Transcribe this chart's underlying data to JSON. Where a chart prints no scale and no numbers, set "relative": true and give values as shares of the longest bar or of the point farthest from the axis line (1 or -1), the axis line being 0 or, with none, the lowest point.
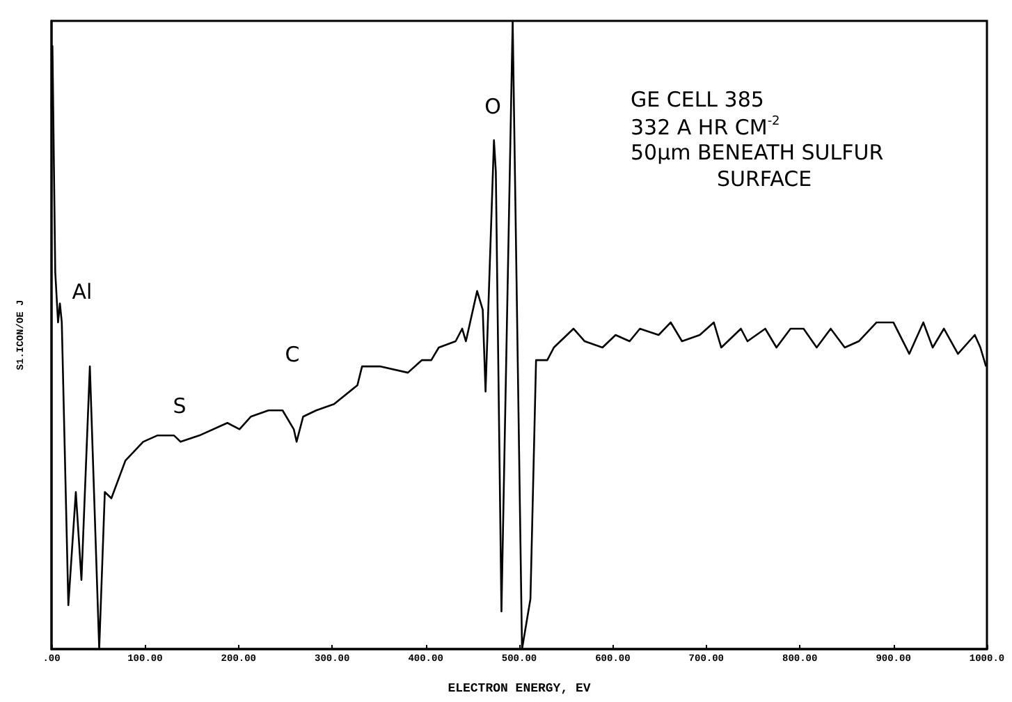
{
  "chart_data": {
    "type": "line",
    "xlabel": "ELECTRON ENERGY, EV",
    "ylabel": "S1.ICON/OE J",
    "relative": true,
    "color": "#000000",
    "x": [
      0,
      1,
      4,
      7,
      9,
      11,
      18,
      26,
      32,
      41,
      51,
      57,
      64,
      79,
      98,
      113,
      131,
      138,
      158,
      188,
      201,
      213,
      232,
      247,
      259,
      262,
      269,
      283,
      302,
      327,
      332,
      351,
      381,
      396,
      406,
      414,
      432,
      439,
      443,
      455,
      461,
      464,
      473,
      475,
      481,
      493,
      503,
      512,
      518,
      530,
      537,
      558,
      570,
      589,
      603,
      618,
      629,
      649,
      662,
      674,
      693,
      708,
      716,
      737,
      744,
      763,
      775,
      790,
      804,
      818,
      833,
      848,
      863,
      882,
      900,
      917,
      932,
      942,
      954,
      969,
      987,
      993,
      999
    ],
    "values": [
      0.86,
      0.96,
      0.6,
      0.52,
      0.55,
      0.52,
      0.07,
      0.25,
      0.11,
      0.45,
      0,
      0.25,
      0.24,
      0.3,
      0.33,
      0.34,
      0.34,
      0.33,
      0.34,
      0.36,
      0.35,
      0.37,
      0.38,
      0.38,
      0.35,
      0.33,
      0.37,
      0.38,
      0.39,
      0.42,
      0.45,
      0.45,
      0.44,
      0.46,
      0.46,
      0.48,
      0.49,
      0.51,
      0.49,
      0.57,
      0.54,
      0.41,
      0.81,
      0.76,
      0.06,
      1,
      0,
      0.08,
      0.46,
      0.46,
      0.48,
      0.51,
      0.49,
      0.48,
      0.5,
      0.49,
      0.51,
      0.5,
      0.52,
      0.49,
      0.5,
      0.52,
      0.48,
      0.51,
      0.49,
      0.51,
      0.48,
      0.51,
      0.51,
      0.48,
      0.51,
      0.48,
      0.49,
      0.52,
      0.52,
      0.47,
      0.52,
      0.48,
      0.51,
      0.47,
      0.5,
      0.48,
      0.45
    ],
    "xlim": [
      0,
      1000
    ],
    "xticks": [
      {
        "value": 0,
        "label": ".00"
      },
      {
        "value": 100,
        "label": "100.00"
      },
      {
        "value": 200,
        "label": "200.00"
      },
      {
        "value": 300,
        "label": "300.00"
      },
      {
        "value": 400,
        "label": "400.00"
      },
      {
        "value": 500,
        "label": "500.00"
      },
      {
        "value": 600,
        "label": "600.00"
      },
      {
        "value": 700,
        "label": "700.00"
      },
      {
        "value": 800,
        "label": "800.00"
      },
      {
        "value": 900,
        "label": "900.00"
      },
      {
        "value": 1000,
        "label": "1000.0"
      }
    ],
    "annotations": [
      "Al",
      "S",
      "C",
      "O",
      "GE CELL 385",
      "332 A HR CM$^{-2}$",
      "50μm BENEATH SULFUR",
      "SURFACE"
    ]
  }
}
